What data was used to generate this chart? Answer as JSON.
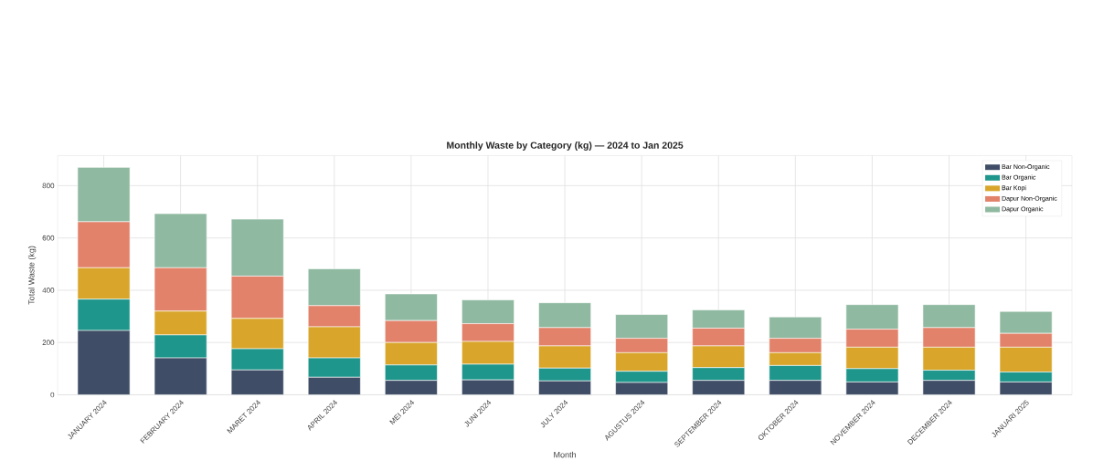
{
  "chart_data": {
    "type": "bar",
    "stacked": true,
    "title": "Monthly Waste by Category (kg) — 2024 to Jan 2025",
    "xlabel": "Month",
    "ylabel": "Total Waste (kg)",
    "categories": [
      "JANUARY 2024",
      "FEBRUARY 2024",
      "MARET 2024",
      "APRIL 2024",
      "MEI 2024",
      "JUNI 2024",
      "JULY 2024",
      "AGUSTUS 2024",
      "SEPTEMBER 2024",
      "OKTOBER 2024",
      "NOVEMBER 2024",
      "DECEMBER 2024",
      "JANUARI 2025"
    ],
    "series": [
      {
        "name": "Bar Non-Organic",
        "color": "#3f4e66",
        "values": [
          246,
          141,
          95,
          67,
          55,
          57,
          53,
          47,
          55,
          55,
          49,
          55,
          49
        ]
      },
      {
        "name": "Bar Organic",
        "color": "#1f968b",
        "values": [
          120,
          88,
          81,
          74,
          59,
          60,
          49,
          43,
          49,
          57,
          51,
          39,
          38
        ]
      },
      {
        "name": "Bar Kopi",
        "color": "#d9a62b",
        "values": [
          120,
          91,
          116,
          119,
          86,
          87,
          85,
          71,
          83,
          49,
          82,
          88,
          95
        ]
      },
      {
        "name": "Dapur Non-Organic",
        "color": "#e2826a",
        "values": [
          176,
          166,
          162,
          81,
          84,
          68,
          70,
          55,
          68,
          55,
          69,
          75,
          53
        ]
      },
      {
        "name": "Dapur Organic",
        "color": "#8fb9a0",
        "values": [
          208,
          207,
          218,
          141,
          102,
          91,
          95,
          91,
          70,
          82,
          94,
          88,
          84
        ]
      }
    ],
    "ylim": [
      0,
      915
    ],
    "yticks": [
      0,
      200,
      400,
      600,
      800
    ],
    "grid": true,
    "legend": "top right"
  }
}
